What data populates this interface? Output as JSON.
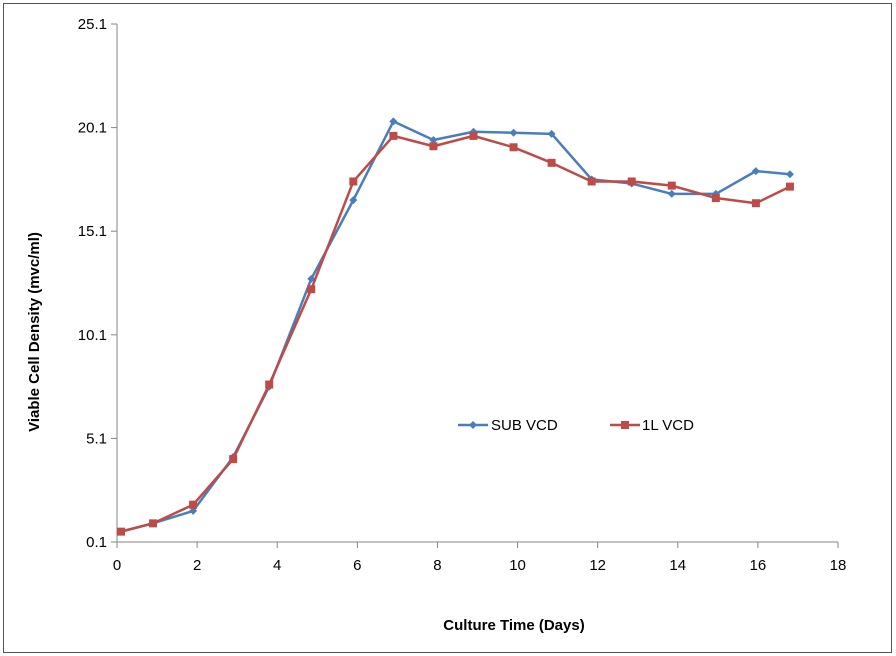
{
  "chart_data": {
    "type": "line",
    "title": "",
    "xlabel": "Culture Time (Days)",
    "ylabel": "Viable Cell Density (mvc/ml)",
    "xlim": [
      0,
      18
    ],
    "ylim": [
      0.1,
      25.1
    ],
    "xticks": [
      "0",
      "2",
      "4",
      "6",
      "8",
      "10",
      "12",
      "14",
      "16",
      "18"
    ],
    "yticks": [
      "0.1",
      "5.1",
      "10.1",
      "15.1",
      "20.1",
      "25.1"
    ],
    "grid": false,
    "legend_position": "center-right",
    "series": [
      {
        "name": "SUB VCD",
        "color": "#4a7ebb",
        "marker": "diamond",
        "x": [
          0.1,
          0.9,
          1.9,
          2.9,
          3.8,
          4.85,
          5.9,
          6.9,
          7.9,
          8.9,
          9.9,
          10.85,
          11.85,
          12.85,
          13.85,
          14.95,
          15.95,
          16.8
        ],
        "y": [
          0.6,
          1.0,
          1.6,
          4.2,
          7.6,
          12.8,
          16.6,
          20.4,
          19.5,
          19.9,
          19.85,
          19.8,
          17.6,
          17.4,
          16.9,
          16.9,
          18.0,
          17.85
        ]
      },
      {
        "name": "1L VCD",
        "color": "#be4b48",
        "marker": "square",
        "x": [
          0.1,
          0.9,
          1.9,
          2.9,
          3.8,
          4.85,
          5.9,
          6.9,
          7.9,
          8.9,
          9.9,
          10.85,
          11.85,
          12.85,
          13.85,
          14.95,
          15.95,
          16.8
        ],
        "y": [
          0.6,
          1.0,
          1.9,
          4.1,
          7.7,
          12.3,
          17.5,
          19.7,
          19.2,
          19.7,
          19.15,
          18.4,
          17.5,
          17.5,
          17.3,
          16.7,
          16.45,
          17.25
        ]
      }
    ]
  }
}
